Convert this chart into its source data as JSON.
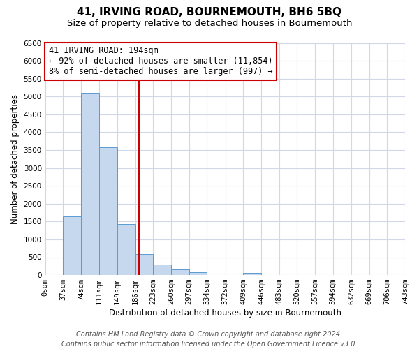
{
  "title": "41, IRVING ROAD, BOURNEMOUTH, BH6 5BQ",
  "subtitle": "Size of property relative to detached houses in Bournemouth",
  "xlabel": "Distribution of detached houses by size in Bournemouth",
  "ylabel": "Number of detached properties",
  "bar_edges": [
    0,
    37,
    74,
    111,
    149,
    186,
    223,
    260,
    297,
    334,
    372,
    409,
    446,
    483,
    520,
    557,
    594,
    632,
    669,
    706,
    743
  ],
  "bar_heights": [
    0,
    1650,
    5100,
    3580,
    1420,
    590,
    300,
    150,
    80,
    0,
    0,
    60,
    0,
    0,
    0,
    0,
    0,
    0,
    0,
    0
  ],
  "bar_color": "#c5d8ed",
  "bar_edgecolor": "#5b9bd5",
  "vline_x": 194,
  "vline_color": "#cc0000",
  "vline_lw": 1.5,
  "annotation_line1": "41 IRVING ROAD: 194sqm",
  "annotation_line2": "← 92% of detached houses are smaller (11,854)",
  "annotation_line3": "8% of semi-detached houses are larger (997) →",
  "annotation_box_color": "#cc0000",
  "ylim": [
    0,
    6500
  ],
  "yticks": [
    0,
    500,
    1000,
    1500,
    2000,
    2500,
    3000,
    3500,
    4000,
    4500,
    5000,
    5500,
    6000,
    6500
  ],
  "xtick_labels": [
    "0sqm",
    "37sqm",
    "74sqm",
    "111sqm",
    "149sqm",
    "186sqm",
    "223sqm",
    "260sqm",
    "297sqm",
    "334sqm",
    "372sqm",
    "409sqm",
    "446sqm",
    "483sqm",
    "520sqm",
    "557sqm",
    "594sqm",
    "632sqm",
    "669sqm",
    "706sqm",
    "743sqm"
  ],
  "footer1": "Contains HM Land Registry data © Crown copyright and database right 2024.",
  "footer2": "Contains public sector information licensed under the Open Government Licence v3.0.",
  "bg_color": "#ffffff",
  "grid_color": "#d0d8e8",
  "title_fontsize": 11,
  "subtitle_fontsize": 9.5,
  "axis_label_fontsize": 8.5,
  "tick_fontsize": 7.5,
  "annotation_fontsize": 8.5,
  "footer_fontsize": 7
}
